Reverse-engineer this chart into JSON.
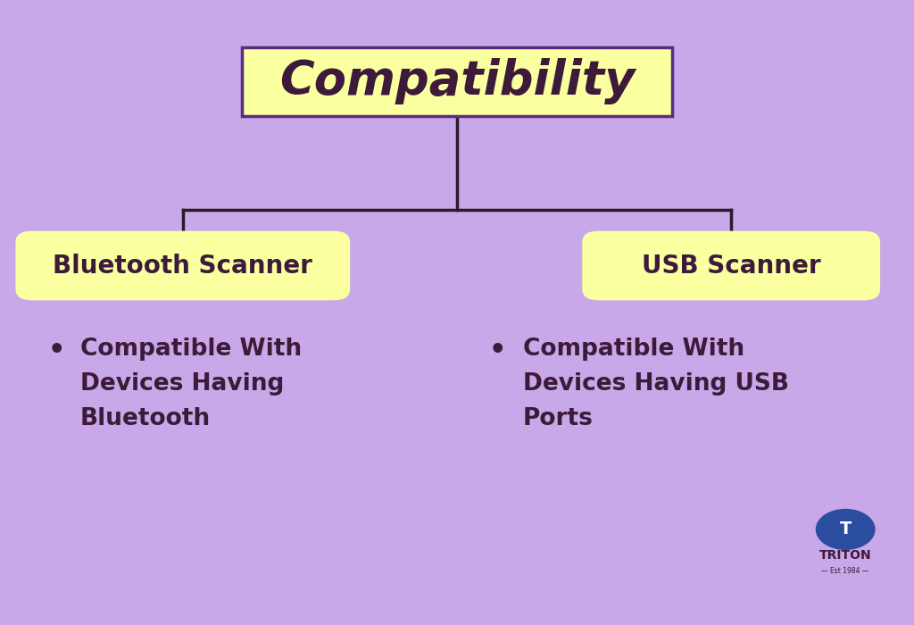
{
  "background_color": "#C8A8E8",
  "title_text": "Compatibility",
  "title_box_color": "#FAFFA0",
  "title_box_edge_color": "#5A2D82",
  "title_font_color": "#3D1A3A",
  "title_fontsize": 38,
  "line_color": "#2A1A2A",
  "line_width": 2.5,
  "left_label": "Bluetooth Scanner",
  "right_label": "USB Scanner",
  "label_box_color": "#FAFFA0",
  "label_font_color": "#3D1A3A",
  "label_fontsize": 20,
  "left_bullet_text": "Compatible With\nDevices Having\nBluetooth",
  "right_bullet_text": "Compatible With\nDevices Having USB\nPorts",
  "bullet_fontsize": 19,
  "bullet_font_color": "#3D1A3A",
  "triton_text": "TRITON",
  "triton_sub": "Est 1984",
  "triton_circle_color": "#2B4DA0",
  "triton_text_color": "#3D1A3A"
}
